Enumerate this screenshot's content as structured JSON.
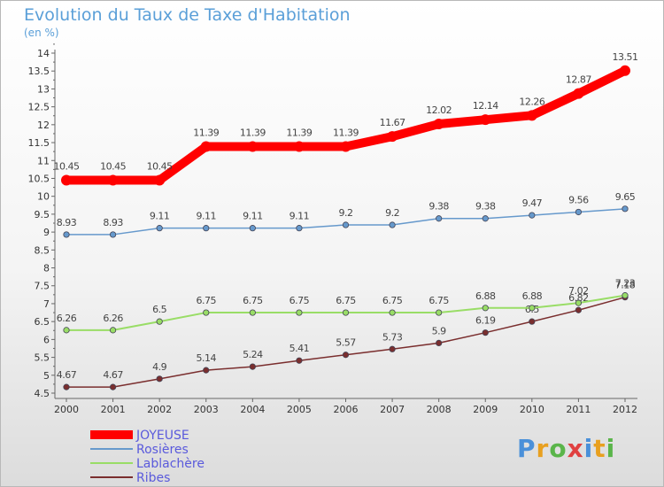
{
  "chart_data": {
    "type": "line",
    "title": "Evolution du Taux de Taxe d'Habitation",
    "subtitle": "(en %)",
    "x": [
      "2000",
      "2001",
      "2002",
      "2003",
      "2004",
      "2005",
      "2006",
      "2007",
      "2008",
      "2009",
      "2010",
      "2011",
      "2012"
    ],
    "ylim": [
      4.5,
      14
    ],
    "yticks": [
      "4.5",
      "5",
      "5.5",
      "6",
      "6.5",
      "7",
      "7.5",
      "8",
      "8.5",
      "9",
      "9.5",
      "10",
      "10.5",
      "11",
      "11.5",
      "12",
      "12.5",
      "13",
      "13.5",
      "14"
    ],
    "grid": false,
    "legend_position": "bottom-left",
    "series": [
      {
        "name": "JOYEUSE",
        "color": "#ff0000",
        "values": [
          10.45,
          10.45,
          10.45,
          11.39,
          11.39,
          11.39,
          11.39,
          11.67,
          12.02,
          12.14,
          12.26,
          12.87,
          13.51
        ],
        "labels": [
          "10.45",
          "10.45",
          "10.45",
          "11.39",
          "11.39",
          "11.39",
          "11.39",
          "11.67",
          "12.02",
          "12.14",
          "12.26",
          "12.87",
          "13.51"
        ]
      },
      {
        "name": "Rosières",
        "color": "#6699cc",
        "values": [
          8.93,
          8.93,
          9.11,
          9.11,
          9.11,
          9.11,
          9.2,
          9.2,
          9.38,
          9.38,
          9.47,
          9.56,
          9.65
        ],
        "labels": [
          "8.93",
          "8.93",
          "9.11",
          "9.11",
          "9.11",
          "9.11",
          "9.2",
          "9.2",
          "9.38",
          "9.38",
          "9.47",
          "9.56",
          "9.65"
        ]
      },
      {
        "name": "Lablachère",
        "color": "#99dd66",
        "values": [
          6.26,
          6.26,
          6.5,
          6.75,
          6.75,
          6.75,
          6.75,
          6.75,
          6.75,
          6.88,
          6.88,
          7.02,
          7.23
        ],
        "labels": [
          "6.26",
          "6.26",
          "6.5",
          "6.75",
          "6.75",
          "6.75",
          "6.75",
          "6.75",
          "6.75",
          "6.88",
          "6.88",
          "7.02",
          "7.23"
        ]
      },
      {
        "name": "Ribes",
        "color": "#7a2e2e",
        "values": [
          4.67,
          4.67,
          4.9,
          5.14,
          5.24,
          5.41,
          5.57,
          5.73,
          5.9,
          6.19,
          6.5,
          6.82,
          7.18
        ],
        "labels": [
          "4.67",
          "4.67",
          "4.9",
          "5.14",
          "5.24",
          "5.41",
          "5.57",
          "5.73",
          "5.9",
          "6.19",
          "6.5",
          "6.82",
          "7.18"
        ]
      }
    ]
  },
  "logo": {
    "letters": [
      "P",
      "r",
      "o",
      "x",
      "i",
      "t",
      "i"
    ],
    "colors": [
      "#4a90d9",
      "#e8a020",
      "#5ab54a",
      "#e04040",
      "#4a90d9",
      "#e8a020",
      "#5ab54a"
    ]
  }
}
